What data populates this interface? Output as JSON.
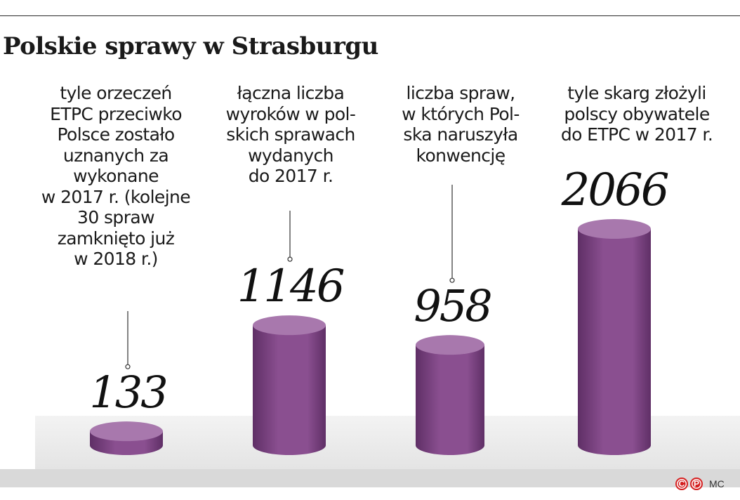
{
  "title": "Polskie sprawy w Strasburgu",
  "credit": {
    "copyright_mark": "C",
    "agency_mark": "P",
    "author": "MC"
  },
  "colors": {
    "bar_body": "#8a4f90",
    "bar_top": "#a878ad",
    "bar_shade": "#5f2f66",
    "floor": "#ececec",
    "accent": "#d42020"
  },
  "chart_data": {
    "type": "bar",
    "style": "3d-cylinder",
    "title": "Polskie sprawy w Strasburgu",
    "xlabel": "",
    "ylabel": "",
    "ylim": [
      0,
      2066
    ],
    "grid": false,
    "legend": "none",
    "categories": [
      "tyle orzeczeń\nETPC przeciwko\nPolsce zostało\nuznanych za\nwykonane\nw 2017 r. (kolejne\n30 spraw\nzamknięto już\nw 2018 r.)",
      "łączna liczba\nwyroków w pol-\nskich sprawach\nwydanych\ndo 2017 r.",
      "liczba spraw,\nw których Pol-\nska naruszyła\nkonwencję",
      "tyle skarg złożyli\npolscy obywatele\ndo ETPC w 2017 r."
    ],
    "values": [
      133,
      1146,
      958,
      2066
    ],
    "value_labels": [
      "133",
      "1146",
      "958",
      "2066"
    ]
  }
}
